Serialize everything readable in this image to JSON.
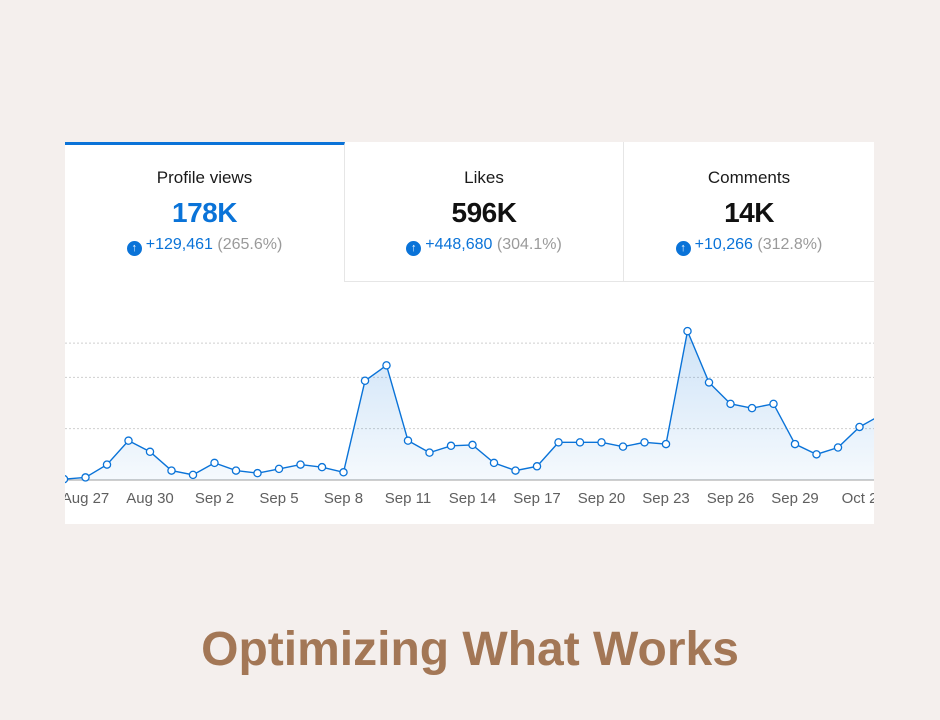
{
  "tabs": [
    {
      "label": "Profile views",
      "value": "178K",
      "delta": "+129,461",
      "pct": "(265.6%)"
    },
    {
      "label": "Likes",
      "value": "596K",
      "delta": "+448,680",
      "pct": "(304.1%)"
    },
    {
      "label": "Comments",
      "value": "14K",
      "delta": "+10,266",
      "pct": "(312.8%)"
    }
  ],
  "page_title": "Optimizing What Works",
  "colors": {
    "accent": "#0a73d8",
    "title": "#a37756",
    "background": "#f4efed"
  },
  "chart_data": {
    "type": "line",
    "title": "Profile views",
    "xlabel": "",
    "ylabel": "",
    "ylim": [
      0,
      9000
    ],
    "grid": "horizontal dashed",
    "tick_labels": [
      "Aug 27",
      "Aug 30",
      "Sep 2",
      "Sep 5",
      "Sep 8",
      "Sep 11",
      "Sep 14",
      "Sep 17",
      "Sep 20",
      "Sep 23",
      "Sep 26",
      "Sep 29",
      "Oct 2"
    ],
    "x": [
      "Aug 26",
      "Aug 27",
      "Aug 28",
      "Aug 29",
      "Aug 30",
      "Aug 31",
      "Sep 1",
      "Sep 2",
      "Sep 3",
      "Sep 4",
      "Sep 5",
      "Sep 6",
      "Sep 7",
      "Sep 8",
      "Sep 9",
      "Sep 10",
      "Sep 11",
      "Sep 12",
      "Sep 13",
      "Sep 14",
      "Sep 15",
      "Sep 16",
      "Sep 17",
      "Sep 18",
      "Sep 19",
      "Sep 20",
      "Sep 21",
      "Sep 22",
      "Sep 23",
      "Sep 24",
      "Sep 25",
      "Sep 26",
      "Sep 27",
      "Sep 28",
      "Sep 29",
      "Sep 30",
      "Oct 1",
      "Oct 2",
      "Oct 3"
    ],
    "series": [
      {
        "name": "Profile views",
        "values": [
          50,
          150,
          900,
          2300,
          1650,
          550,
          300,
          1000,
          550,
          400,
          650,
          900,
          750,
          450,
          5800,
          6700,
          2300,
          1600,
          2000,
          2050,
          1000,
          550,
          800,
          2200,
          2200,
          2200,
          1950,
          2200,
          2100,
          8700,
          5700,
          4450,
          4200,
          4450,
          2100,
          1500,
          1900,
          3100,
          3800
        ]
      }
    ]
  }
}
